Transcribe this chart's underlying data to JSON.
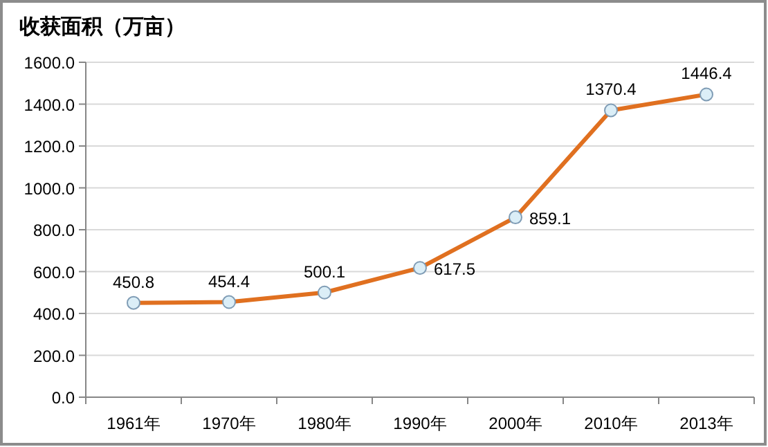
{
  "chart_data": {
    "type": "line",
    "title": "收获面积（万亩）",
    "categories": [
      "1961年",
      "1970年",
      "1980年",
      "1990年",
      "2000年",
      "2010年",
      "2013年"
    ],
    "series": [
      {
        "color": "#e07020",
        "values": [
          450.8,
          454.4,
          500.1,
          617.5,
          859.1,
          1370.4,
          1446.4
        ]
      }
    ],
    "ylim": [
      0,
      1600
    ],
    "yticks": [
      {
        "value": 0,
        "label": "0.0"
      },
      {
        "value": 200,
        "label": "200.0"
      },
      {
        "value": 400,
        "label": "400.0"
      },
      {
        "value": 600,
        "label": "600.0"
      },
      {
        "value": 800,
        "label": "800.0"
      },
      {
        "value": 1000,
        "label": "1000.0"
      },
      {
        "value": 1200,
        "label": "1200.0"
      },
      {
        "value": 1400,
        "label": "1400.0"
      },
      {
        "value": 1600,
        "label": "1600.0"
      }
    ],
    "grid": "y",
    "marker": "circle",
    "line_style": "solid",
    "data_labels": true
  }
}
